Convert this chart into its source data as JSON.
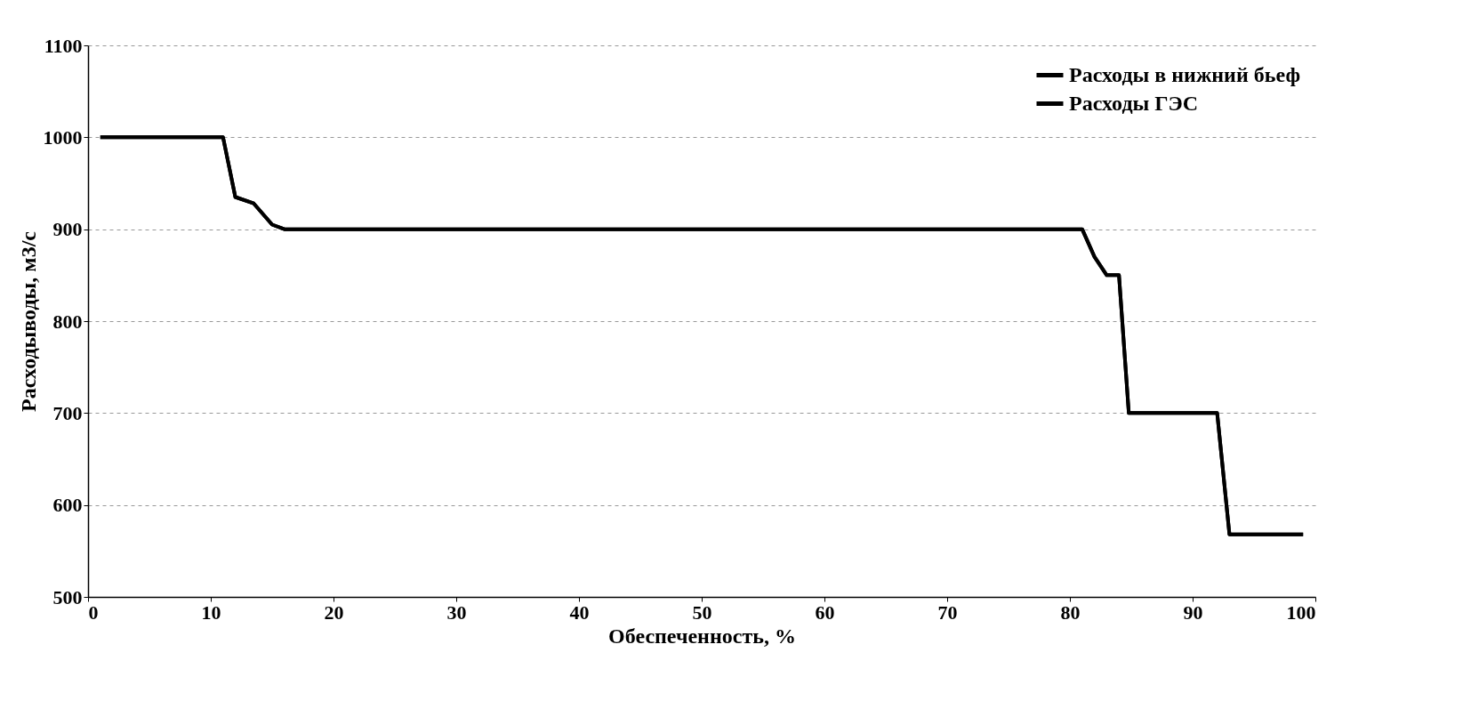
{
  "chart_data": {
    "type": "line",
    "xlabel": "Обеспеченность, %",
    "ylabel": "Расходыводы, м3/с",
    "xlim": [
      0,
      100
    ],
    "xticks": [
      0,
      10,
      20,
      30,
      40,
      50,
      60,
      70,
      80,
      90,
      100
    ],
    "ylim": [
      500,
      1100
    ],
    "yticks": [
      500,
      600,
      700,
      800,
      900,
      1000,
      1100
    ],
    "grid": "y",
    "legend": "top right",
    "line_style": "solid",
    "marker": "none",
    "series": [
      {
        "name": "Расходы в нижний бьеф",
        "color": "#000000",
        "x": [
          1,
          11,
          12,
          13.5,
          15,
          16,
          81,
          82,
          83,
          84,
          84.8,
          92,
          93,
          99
        ],
        "values": [
          1000,
          1000,
          935,
          928,
          905,
          900,
          900,
          870,
          850,
          850,
          700,
          700,
          568,
          568
        ]
      },
      {
        "name": "Расходы ГЭС",
        "color": "#000000",
        "x": [
          1,
          11,
          12,
          13.5,
          15,
          16,
          81,
          82,
          83,
          84,
          84.8,
          92,
          93,
          99
        ],
        "values": [
          1000,
          1000,
          935,
          928,
          905,
          900,
          900,
          870,
          850,
          850,
          700,
          700,
          568,
          568
        ]
      }
    ]
  }
}
